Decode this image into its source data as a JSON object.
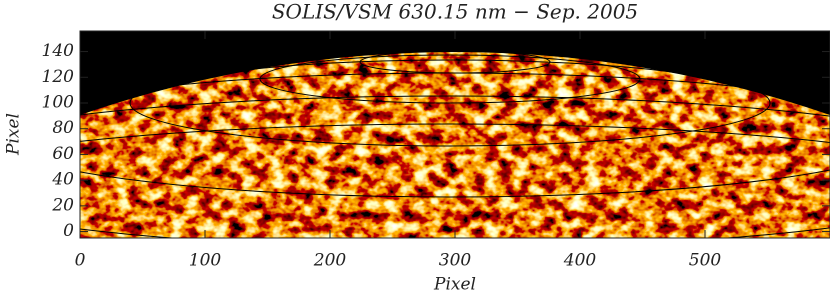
{
  "chart_data": {
    "type": "image",
    "title": "SOLIS/VSM 630.15 nm − Sep. 2005",
    "xlabel": "Pixel",
    "ylabel": "Pixel",
    "xlim": [
      0,
      600
    ],
    "xticks": [
      0,
      100,
      200,
      300,
      400,
      500
    ],
    "ylim": [
      -5,
      156
    ],
    "yticks": [
      0,
      20,
      40,
      60,
      80,
      100,
      120,
      140
    ]
  }
}
